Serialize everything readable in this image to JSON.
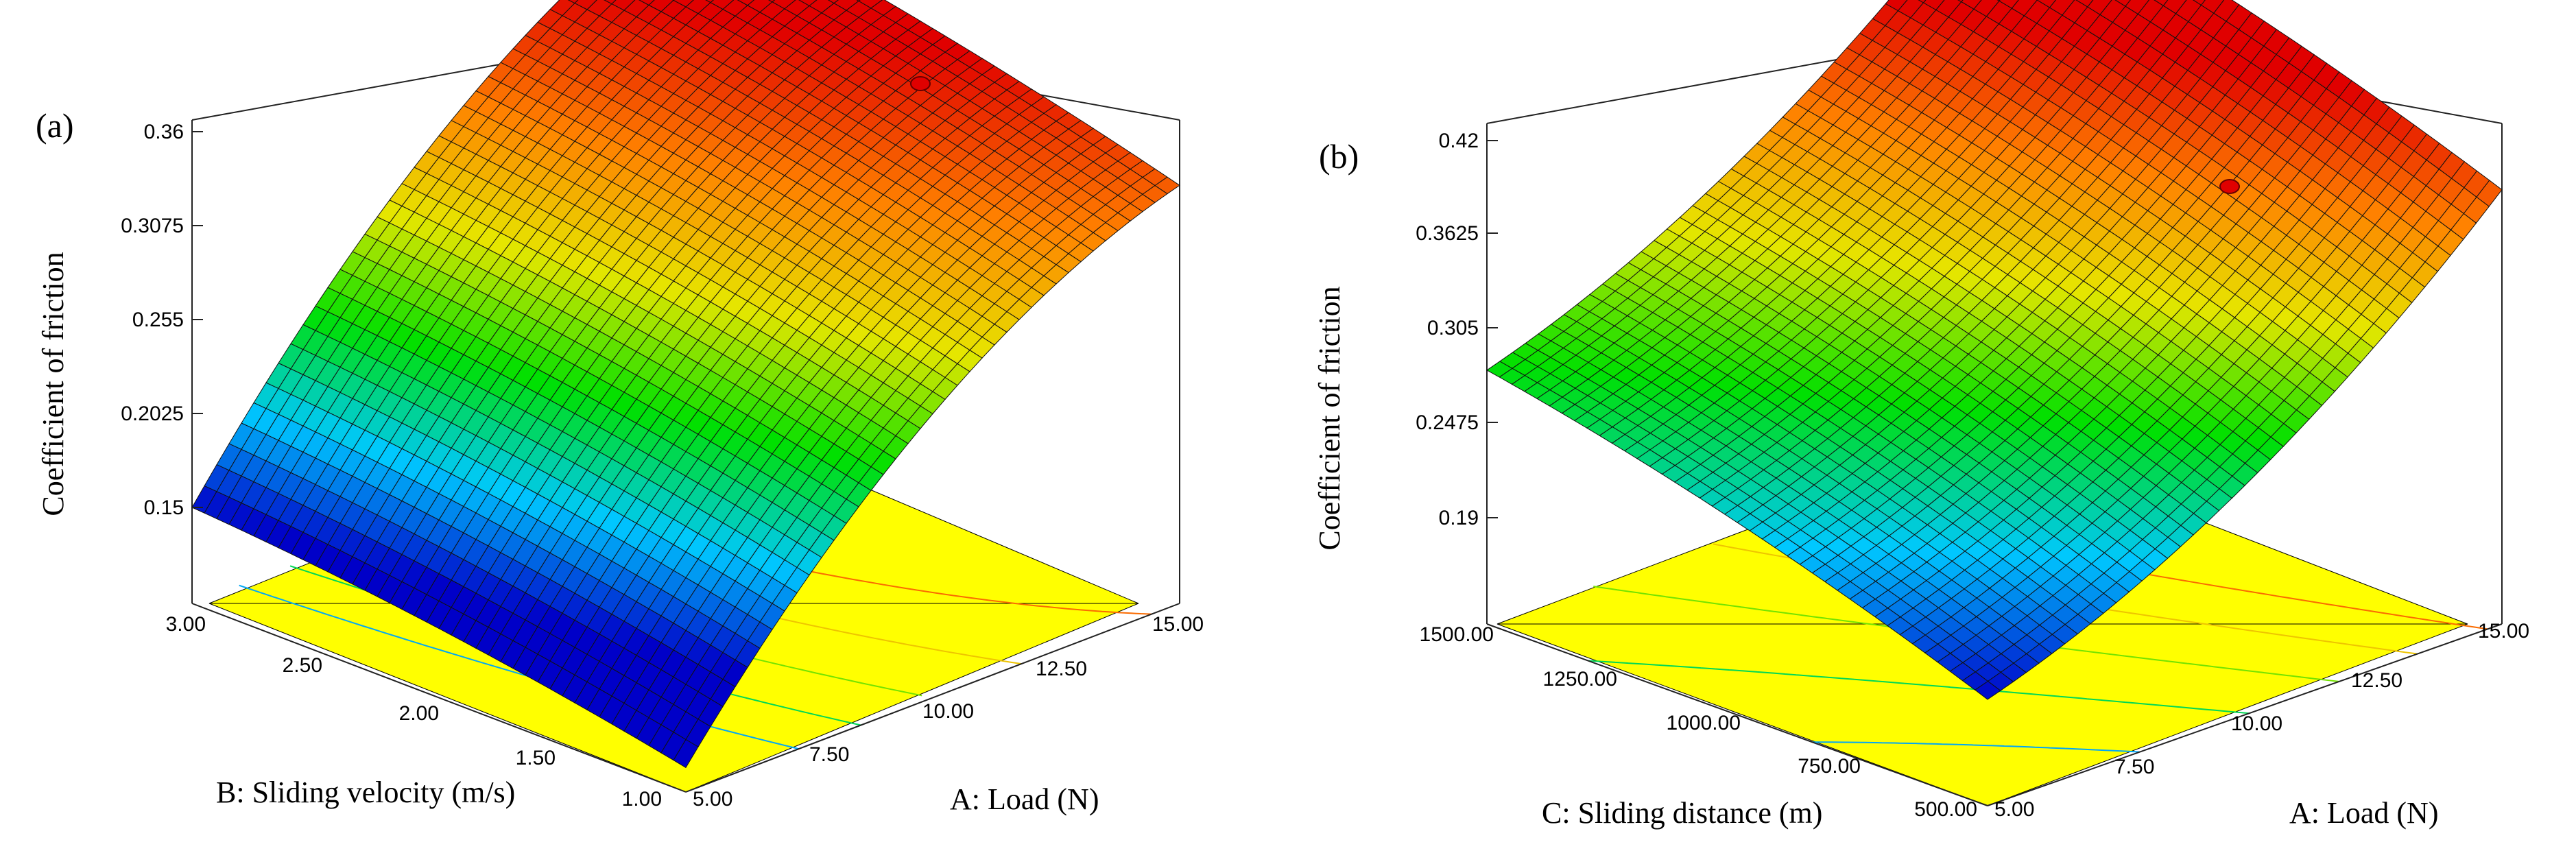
{
  "chart_data": [
    {
      "type": "surface",
      "panel_label": "(a)",
      "zlabel": "Coefficient of friction",
      "xlabel": "A: Load (N)",
      "ylabel": "B: Sliding velocity (m/s)",
      "x_ticks": [
        "5.00",
        "7.50",
        "10.00",
        "12.50",
        "15.00"
      ],
      "y_ticks": [
        "1.00",
        "1.50",
        "2.00",
        "2.50",
        "3.00"
      ],
      "z_ticks": [
        "0.15",
        "0.2025",
        "0.255",
        "0.3075",
        "0.36"
      ],
      "xlim": [
        5,
        15
      ],
      "ylim": [
        1,
        3
      ],
      "zlim": [
        0.15,
        0.36
      ],
      "corner_values": {
        "x5_y1": 0.11,
        "x15_y1": 0.325,
        "x5_y3": 0.16,
        "x15_y3": 0.355
      },
      "max_point": {
        "x": 15,
        "y": 2.5,
        "z": 0.362
      },
      "colors": [
        "#0000c8",
        "#00c8ff",
        "#00e000",
        "#e6e600",
        "#ff8000",
        "#e00000"
      ]
    },
    {
      "type": "surface",
      "panel_label": "(b)",
      "zlabel": "Coefficient of friction",
      "xlabel": "A: Load (N)",
      "ylabel": "C: Sliding distance (m)",
      "x_ticks": [
        "5.00",
        "7.50",
        "10.00",
        "12.50",
        "15.00"
      ],
      "y_ticks": [
        "500.00",
        "750.00",
        "1000.00",
        "1250.00",
        "1500.00"
      ],
      "z_ticks": [
        "0.19",
        "0.2475",
        "0.305",
        "0.3625",
        "0.42"
      ],
      "xlim": [
        5,
        15
      ],
      "ylim": [
        500,
        1500
      ],
      "zlim": [
        0.19,
        0.42
      ],
      "corner_values": {
        "x5_y500": 0.19,
        "x15_y500": 0.39,
        "x5_y1500": 0.28,
        "x15_y1500": 0.42
      },
      "max_point": {
        "x": 15,
        "y": 1500,
        "z": 0.42
      },
      "colors": [
        "#0000c8",
        "#00c8ff",
        "#00e000",
        "#e6e600",
        "#ff8000",
        "#e00000"
      ]
    }
  ]
}
